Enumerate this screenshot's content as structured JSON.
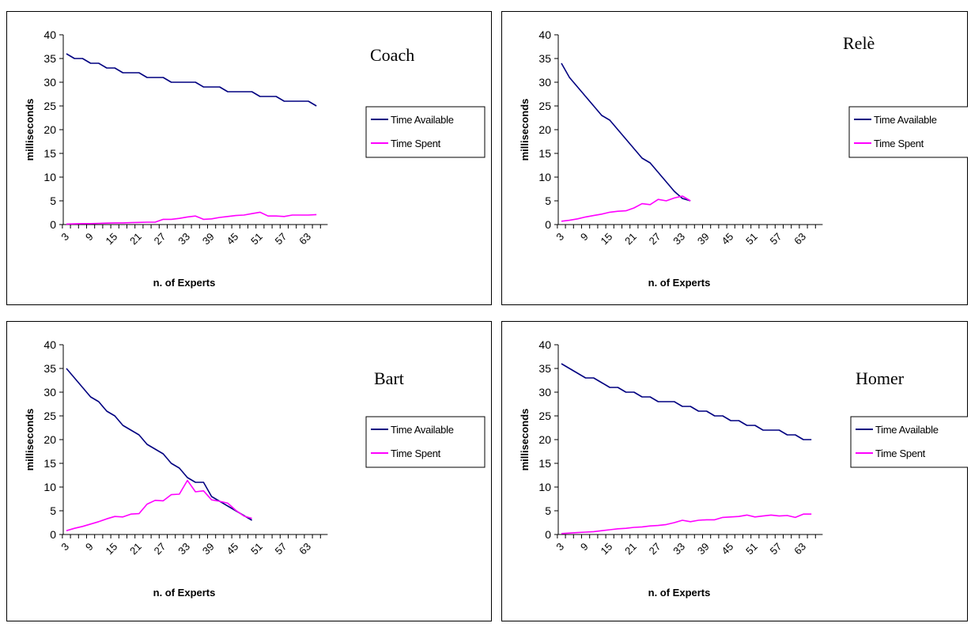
{
  "chart_data": [
    {
      "type": "line",
      "title": "Coach",
      "xlabel": "n. of Experts",
      "ylabel": "milliseconds",
      "ylim": [
        0,
        40
      ],
      "yticks": [
        "0",
        "5",
        "10",
        "15",
        "20",
        "25",
        "30",
        "35",
        "40"
      ],
      "xticks": [
        "3",
        "9",
        "15",
        "21",
        "27",
        "33",
        "39",
        "45",
        "51",
        "57",
        "63"
      ],
      "legend": "right",
      "series": [
        {
          "name": "Time Available",
          "color": "#000080",
          "x": [
            3,
            5,
            7,
            9,
            11,
            13,
            15,
            17,
            19,
            21,
            23,
            25,
            27,
            29,
            31,
            33,
            35,
            37,
            39,
            41,
            43,
            45,
            47,
            49,
            51,
            53,
            55,
            57,
            59,
            61,
            63,
            65
          ],
          "y": [
            36,
            35,
            35,
            34,
            34,
            33,
            33,
            32,
            32,
            32,
            31,
            31,
            31,
            30,
            30,
            30,
            30,
            29,
            29,
            29,
            28,
            28,
            28,
            28,
            27,
            27,
            27,
            26,
            26,
            26,
            26,
            25
          ]
        },
        {
          "name": "Time Spent",
          "color": "#ff00ff",
          "x": [
            3,
            5,
            7,
            9,
            11,
            13,
            15,
            17,
            19,
            21,
            23,
            25,
            27,
            29,
            31,
            33,
            35,
            37,
            39,
            41,
            43,
            45,
            47,
            49,
            51,
            53,
            55,
            57,
            59,
            61,
            63,
            65
          ],
          "y": [
            0.1,
            0.15,
            0.2,
            0.2,
            0.25,
            0.3,
            0.35,
            0.35,
            0.4,
            0.45,
            0.5,
            0.5,
            1.1,
            1.1,
            1.3,
            1.6,
            1.8,
            1.1,
            1.2,
            1.5,
            1.7,
            1.9,
            2.0,
            2.3,
            2.6,
            1.8,
            1.8,
            1.7,
            2.0,
            2.0,
            2.0,
            2.1
          ]
        }
      ]
    },
    {
      "type": "line",
      "title": "Relè",
      "xlabel": "n. of Experts",
      "ylabel": "milliseconds",
      "ylim": [
        0,
        40
      ],
      "yticks": [
        "0",
        "5",
        "10",
        "15",
        "20",
        "25",
        "30",
        "35",
        "40"
      ],
      "xticks": [
        "3",
        "9",
        "15",
        "21",
        "27",
        "33",
        "39",
        "45",
        "51",
        "57",
        "63"
      ],
      "legend": "right",
      "series": [
        {
          "name": "Time Available",
          "color": "#000080",
          "x": [
            3,
            5,
            7,
            9,
            11,
            13,
            15,
            17,
            19,
            21,
            23,
            25,
            27,
            29,
            31,
            33,
            35
          ],
          "y": [
            34,
            31,
            29,
            27,
            25,
            23,
            22,
            20,
            18,
            16,
            14,
            13,
            11,
            9,
            7,
            5.5,
            5
          ]
        },
        {
          "name": "Time Spent",
          "color": "#ff00ff",
          "x": [
            3,
            5,
            7,
            9,
            11,
            13,
            15,
            17,
            19,
            21,
            23,
            25,
            27,
            29,
            31,
            33,
            35
          ],
          "y": [
            0.7,
            0.9,
            1.2,
            1.6,
            1.9,
            2.2,
            2.6,
            2.8,
            2.9,
            3.5,
            4.4,
            4.2,
            5.3,
            5.0,
            5.6,
            6.0,
            5.0
          ]
        }
      ]
    },
    {
      "type": "line",
      "title": "Bart",
      "xlabel": "n. of Experts",
      "ylabel": "milliseconds",
      "ylim": [
        0,
        40
      ],
      "yticks": [
        "0",
        "5",
        "10",
        "15",
        "20",
        "25",
        "30",
        "35",
        "40"
      ],
      "xticks": [
        "3",
        "9",
        "15",
        "21",
        "27",
        "33",
        "39",
        "45",
        "51",
        "57",
        "63"
      ],
      "legend": "right",
      "series": [
        {
          "name": "Time Available",
          "color": "#000080",
          "x": [
            3,
            5,
            7,
            9,
            11,
            13,
            15,
            17,
            19,
            21,
            23,
            25,
            27,
            29,
            31,
            33,
            35,
            37,
            39,
            41,
            43,
            45,
            47,
            49
          ],
          "y": [
            35,
            33,
            31,
            29,
            28,
            26,
            25,
            23,
            22,
            21,
            19,
            18,
            17,
            15,
            14,
            12,
            11,
            11,
            8,
            7,
            6,
            5,
            4,
            3
          ]
        },
        {
          "name": "Time Spent",
          "color": "#ff00ff",
          "x": [
            3,
            5,
            7,
            9,
            11,
            13,
            15,
            17,
            19,
            21,
            23,
            25,
            27,
            29,
            31,
            33,
            35,
            37,
            39,
            41,
            43,
            45,
            47,
            49
          ],
          "y": [
            0.8,
            1.3,
            1.7,
            2.2,
            2.7,
            3.3,
            3.8,
            3.7,
            4.3,
            4.4,
            6.4,
            7.2,
            7.1,
            8.4,
            8.5,
            11.4,
            9.0,
            9.2,
            7.3,
            7.0,
            6.6,
            5.1,
            3.9,
            3.4
          ]
        }
      ]
    },
    {
      "type": "line",
      "title": "Homer",
      "xlabel": "n. of Experts",
      "ylabel": "milliseconds",
      "ylim": [
        0,
        40
      ],
      "yticks": [
        "0",
        "5",
        "10",
        "15",
        "20",
        "25",
        "30",
        "35",
        "40"
      ],
      "xticks": [
        "3",
        "9",
        "15",
        "21",
        "27",
        "33",
        "39",
        "45",
        "51",
        "57",
        "63"
      ],
      "legend": "right",
      "series": [
        {
          "name": "Time Available",
          "color": "#000080",
          "x": [
            3,
            5,
            7,
            9,
            11,
            13,
            15,
            17,
            19,
            21,
            23,
            25,
            27,
            29,
            31,
            33,
            35,
            37,
            39,
            41,
            43,
            45,
            47,
            49,
            51,
            53,
            55,
            57,
            59,
            61,
            63,
            65
          ],
          "y": [
            36,
            35,
            34,
            33,
            33,
            32,
            31,
            31,
            30,
            30,
            29,
            29,
            28,
            28,
            28,
            27,
            27,
            26,
            26,
            25,
            25,
            24,
            24,
            23,
            23,
            22,
            22,
            22,
            21,
            21,
            20,
            20
          ]
        },
        {
          "name": "Time Spent",
          "color": "#ff00ff",
          "x": [
            3,
            5,
            7,
            9,
            11,
            13,
            15,
            17,
            19,
            21,
            23,
            25,
            27,
            29,
            31,
            33,
            35,
            37,
            39,
            41,
            43,
            45,
            47,
            49,
            51,
            53,
            55,
            57,
            59,
            61,
            63,
            65
          ],
          "y": [
            0.2,
            0.3,
            0.4,
            0.5,
            0.6,
            0.8,
            1.0,
            1.2,
            1.3,
            1.5,
            1.6,
            1.8,
            1.9,
            2.1,
            2.5,
            3.0,
            2.7,
            3.0,
            3.1,
            3.1,
            3.6,
            3.7,
            3.8,
            4.1,
            3.7,
            3.9,
            4.1,
            3.9,
            4.0,
            3.6,
            4.3,
            4.3
          ]
        }
      ]
    }
  ]
}
